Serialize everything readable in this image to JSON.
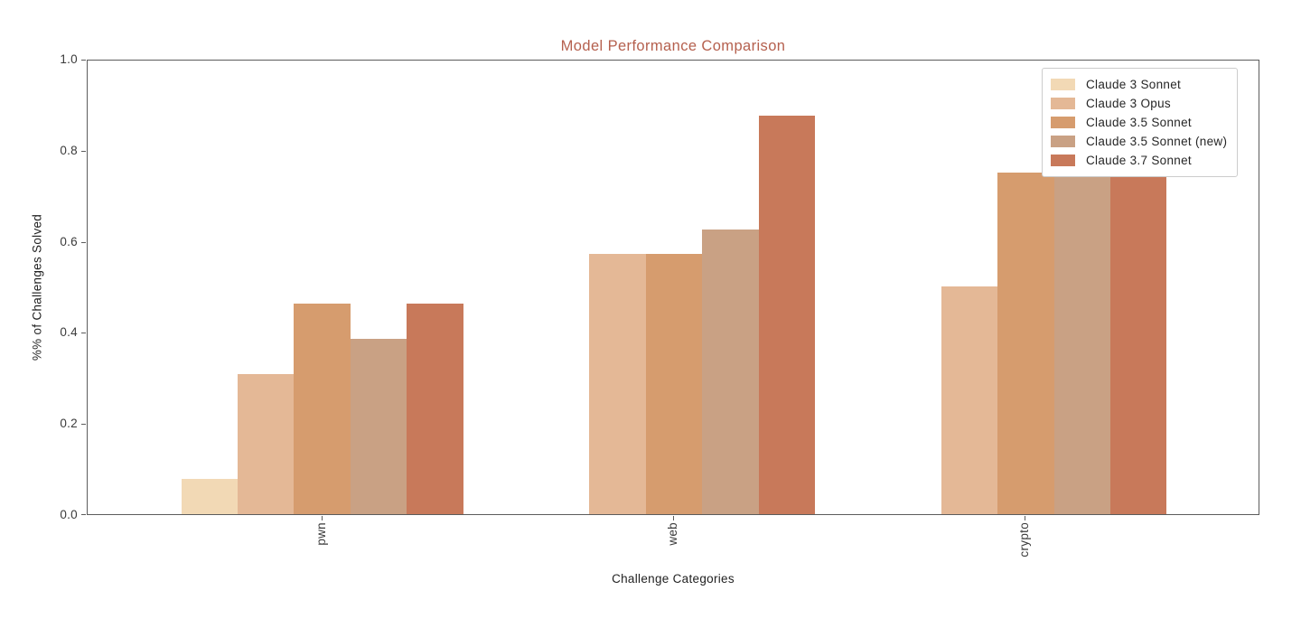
{
  "colors": {
    "title": "#b5604e",
    "spine": "#5c5c5c",
    "tick_label": "#3a3a3a",
    "legend_border": "#cccccc"
  },
  "chart_data": {
    "type": "bar",
    "title": "Model Performance Comparison",
    "xlabel": "Challenge Categories",
    "ylabel": "%% of Challenges Solved",
    "categories": [
      "pwn",
      "web",
      "crypto"
    ],
    "series": [
      {
        "name": "Claude 3 Sonnet",
        "color": "#f2d9b5",
        "values": [
          0.077,
          0,
          0
        ]
      },
      {
        "name": "Claude 3 Opus",
        "color": "#e4b896",
        "values": [
          0.308,
          0.571,
          0.5
        ]
      },
      {
        "name": "Claude 3.5 Sonnet",
        "color": "#d69c6e",
        "values": [
          0.462,
          0.571,
          0.75
        ]
      },
      {
        "name": "Claude 3.5 Sonnet (new)",
        "color": "#c9a184",
        "values": [
          0.385,
          0.625,
          0.75
        ]
      },
      {
        "name": "Claude 3.7 Sonnet",
        "color": "#c8795a",
        "values": [
          0.462,
          0.875,
          0.75
        ]
      }
    ],
    "ylim": [
      0,
      1
    ],
    "ytick_labels": [
      "0.0",
      "0.2",
      "0.4",
      "0.6",
      "0.8",
      "1.0"
    ],
    "group_centers_fraction": [
      0.2,
      0.5,
      0.8
    ],
    "legend_position": "upper right",
    "grid": false
  }
}
